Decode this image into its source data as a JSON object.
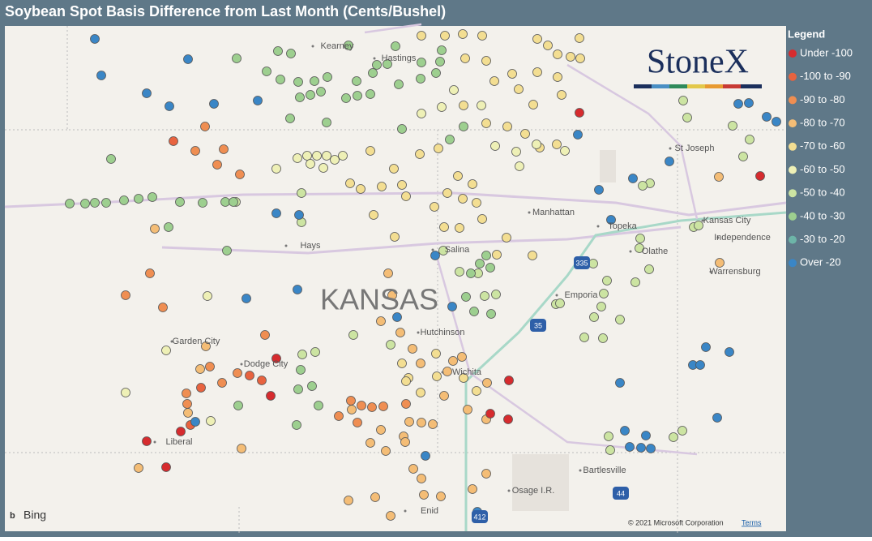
{
  "title": "Soybean Spot Basis Difference from Last Month (Cents/Bushel)",
  "legend": {
    "title": "Legend",
    "items": [
      {
        "label": "Under -100",
        "color": "#d62b2e"
      },
      {
        "label": "-100 to -90",
        "color": "#e8633f"
      },
      {
        "label": "-90 to -80",
        "color": "#ef8e52"
      },
      {
        "label": "-80 to -70",
        "color": "#f4bd76"
      },
      {
        "label": "-70 to -60",
        "color": "#f3de92"
      },
      {
        "label": "-60 to -50",
        "color": "#eef0b6"
      },
      {
        "label": "-50 to -40",
        "color": "#cce4a2"
      },
      {
        "label": "-40 to -30",
        "color": "#9dcf8f"
      },
      {
        "label": "-30 to -20",
        "color": "#6db5a8"
      },
      {
        "label": "Over -20",
        "color": "#3a86c6"
      }
    ]
  },
  "map": {
    "state_label": "KANSAS",
    "places": [
      "Kearney",
      "Hastings",
      "St Joseph",
      "Manhattan",
      "Topeka",
      "Kansas City",
      "Independence",
      "Hays",
      "Salina",
      "Olathe",
      "Warrensburg",
      "Emporia",
      "Garden City",
      "Dodge City",
      "Hutchinson",
      "Wichita",
      "Liberal",
      "Bartlesville",
      "Osage I.R.",
      "Enid"
    ],
    "shields": [
      "335",
      "35",
      "44",
      "412"
    ],
    "logo": "StoneX",
    "provider": "Bing",
    "copyright": "© 2021 Microsoft Corporation",
    "terms": "Terms"
  }
}
